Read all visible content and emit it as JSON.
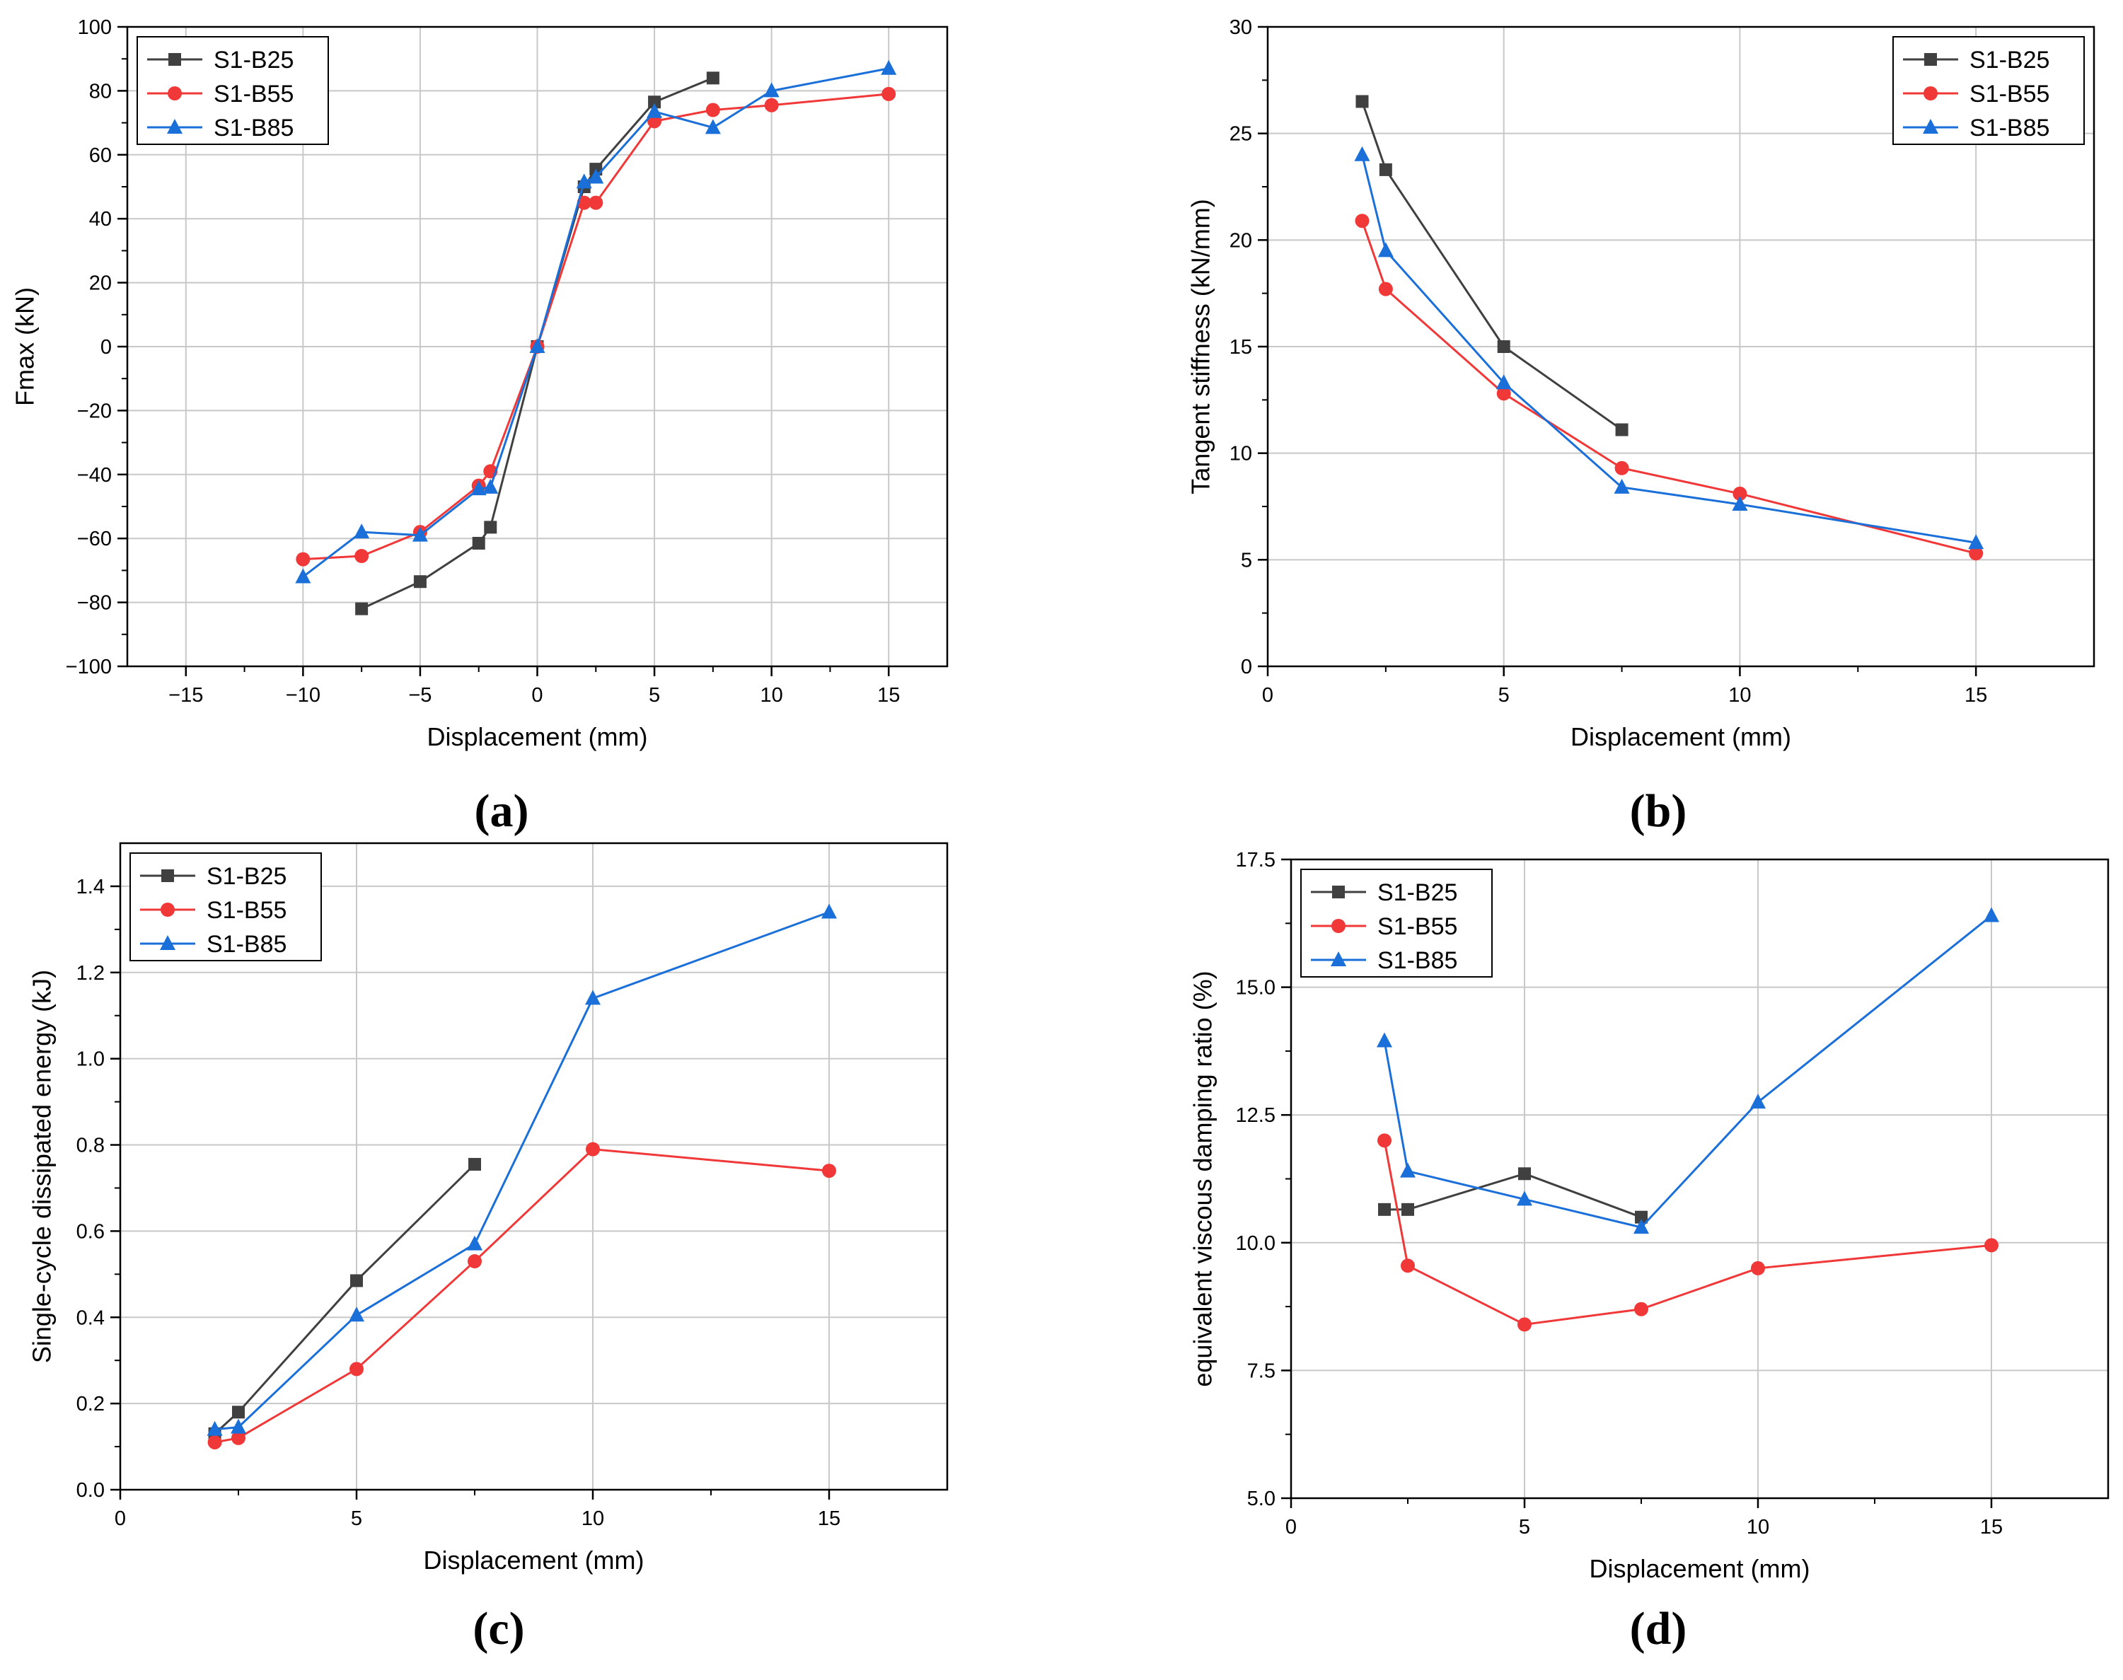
{
  "figure": {
    "panels": [
      "(a)",
      "(b)",
      "(c)",
      "(d)"
    ]
  },
  "colors": {
    "S1-B25": "#404040",
    "S1-B55": "#f03838",
    "S1-B85": "#1a6fd8",
    "grid": "#c8c8c8",
    "axis": "#000000"
  },
  "chart_data": [
    {
      "id": "a",
      "panel_label": "(a)",
      "type": "line",
      "title": "",
      "xlabel": "Displacement (mm)",
      "ylabel": "Fmax (kN)",
      "xlim": [
        -17.5,
        17.5
      ],
      "ylim": [
        -100,
        100
      ],
      "xticks": [
        -15,
        -10,
        -5,
        0,
        5,
        10,
        15
      ],
      "xtick_labels": [
        "−15",
        "−10",
        "−5",
        "0",
        "5",
        "10",
        "15"
      ],
      "yticks": [
        -100,
        -80,
        -60,
        -40,
        -20,
        0,
        20,
        40,
        60,
        80,
        100
      ],
      "ytick_labels": [
        "−100",
        "−80",
        "−60",
        "−40",
        "−20",
        "0",
        "20",
        "40",
        "60",
        "80",
        "100"
      ],
      "grid": true,
      "legend": "top-left",
      "series": [
        {
          "name": "S1-B25",
          "marker": "square",
          "x": [
            -7.5,
            -5,
            -2.5,
            -2,
            0,
            2,
            2.5,
            5,
            7.5
          ],
          "y": [
            -82,
            -73.5,
            -61.5,
            -56.5,
            0,
            50,
            55.5,
            76.5,
            84
          ]
        },
        {
          "name": "S1-B55",
          "marker": "circle",
          "x": [
            -10,
            -7.5,
            -5,
            -2.5,
            -2,
            0,
            2,
            2.5,
            5,
            7.5,
            10,
            15
          ],
          "y": [
            -66.5,
            -65.5,
            -58,
            -43.5,
            -39,
            0,
            45,
            45,
            70.5,
            74,
            75.5,
            79
          ]
        },
        {
          "name": "S1-B85",
          "marker": "triangle",
          "x": [
            -10,
            -7.5,
            -5,
            -2.5,
            -2,
            0,
            2,
            2.5,
            5,
            7.5,
            10,
            15
          ],
          "y": [
            -72,
            -58,
            -59,
            -44.5,
            -44,
            0,
            51.5,
            53,
            73.5,
            68.5,
            80,
            87
          ]
        }
      ]
    },
    {
      "id": "b",
      "panel_label": "(b)",
      "type": "line",
      "title": "",
      "xlabel": "Displacement (mm)",
      "ylabel": "Tangent stiffness (kN/mm)",
      "xlim": [
        0,
        17.5
      ],
      "ylim": [
        0,
        30
      ],
      "xticks": [
        0,
        5,
        10,
        15
      ],
      "xtick_labels": [
        "0",
        "5",
        "10",
        "15"
      ],
      "yticks": [
        0,
        5,
        10,
        15,
        20,
        25,
        30
      ],
      "ytick_labels": [
        "0",
        "5",
        "10",
        "15",
        "20",
        "25",
        "30"
      ],
      "grid": true,
      "legend": "top-right",
      "series": [
        {
          "name": "S1-B25",
          "marker": "square",
          "x": [
            2,
            2.5,
            5,
            7.5
          ],
          "y": [
            26.5,
            23.3,
            15,
            11.1
          ]
        },
        {
          "name": "S1-B55",
          "marker": "circle",
          "x": [
            2,
            2.5,
            5,
            7.5,
            10,
            15
          ],
          "y": [
            20.9,
            17.7,
            12.8,
            9.3,
            8.1,
            5.3
          ]
        },
        {
          "name": "S1-B85",
          "marker": "triangle",
          "x": [
            2,
            2.5,
            5,
            7.5,
            10,
            15
          ],
          "y": [
            24.0,
            19.5,
            13.3,
            8.4,
            7.6,
            5.8
          ]
        }
      ]
    },
    {
      "id": "c",
      "panel_label": "(c)",
      "type": "line",
      "title": "",
      "xlabel": "Displacement (mm)",
      "ylabel": "Single-cycle dissipated energy (kJ)",
      "xlim": [
        0,
        17.5
      ],
      "ylim": [
        0,
        1.5
      ],
      "xticks": [
        0,
        5,
        10,
        15
      ],
      "xtick_labels": [
        "0",
        "5",
        "10",
        "15"
      ],
      "yticks": [
        0,
        0.2,
        0.4,
        0.6,
        0.8,
        1.0,
        1.2,
        1.4
      ],
      "ytick_labels": [
        "0.0",
        "0.2",
        "0.4",
        "0.6",
        "0.8",
        "1.0",
        "1.2",
        "1.4"
      ],
      "grid": true,
      "legend": "top-left",
      "series": [
        {
          "name": "S1-B25",
          "marker": "square",
          "x": [
            2,
            2.5,
            5,
            7.5
          ],
          "y": [
            0.13,
            0.18,
            0.485,
            0.755
          ]
        },
        {
          "name": "S1-B55",
          "marker": "circle",
          "x": [
            2,
            2.5,
            5,
            7.5,
            10,
            15
          ],
          "y": [
            0.11,
            0.12,
            0.28,
            0.53,
            0.79,
            0.74
          ]
        },
        {
          "name": "S1-B85",
          "marker": "triangle",
          "x": [
            2,
            2.5,
            5,
            7.5,
            10,
            15
          ],
          "y": [
            0.14,
            0.145,
            0.405,
            0.57,
            1.14,
            1.34
          ]
        }
      ]
    },
    {
      "id": "d",
      "panel_label": "(d)",
      "type": "line",
      "title": "",
      "xlabel": "Displacement (mm)",
      "ylabel": "equivalent viscous damping ratio (%)",
      "xlim": [
        0,
        17.5
      ],
      "ylim": [
        5,
        17.5
      ],
      "xticks": [
        0,
        5,
        10,
        15
      ],
      "xtick_labels": [
        "0",
        "5",
        "10",
        "15"
      ],
      "yticks": [
        5,
        7.5,
        10,
        12.5,
        15,
        17.5
      ],
      "ytick_labels": [
        "5.0",
        "7.5",
        "10.0",
        "12.5",
        "15.0",
        "17.5"
      ],
      "grid": true,
      "legend": "top-left",
      "series": [
        {
          "name": "S1-B25",
          "marker": "square",
          "x": [
            2,
            2.5,
            5,
            7.5
          ],
          "y": [
            10.65,
            10.65,
            11.35,
            10.5
          ]
        },
        {
          "name": "S1-B55",
          "marker": "circle",
          "x": [
            2,
            2.5,
            5,
            7.5,
            10,
            15
          ],
          "y": [
            12.0,
            9.55,
            8.4,
            8.7,
            9.5,
            9.95
          ]
        },
        {
          "name": "S1-B85",
          "marker": "triangle",
          "x": [
            2,
            2.5,
            5,
            7.5,
            10,
            15
          ],
          "y": [
            13.95,
            11.4,
            10.85,
            10.3,
            12.75,
            16.4
          ]
        }
      ]
    }
  ]
}
